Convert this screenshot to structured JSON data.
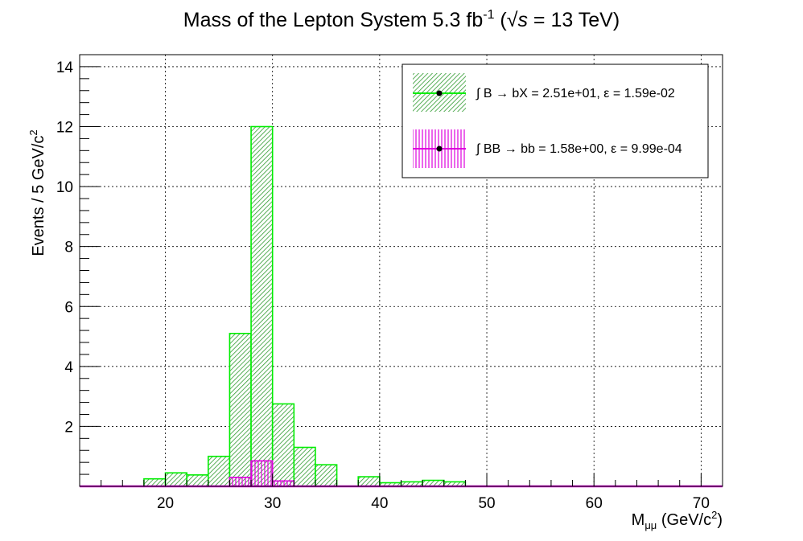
{
  "chart_data": {
    "type": "bar",
    "title_main": "Mass of the Lepton System 5.3 fb",
    "title_exp": "-1",
    "title_paren_open": " (",
    "title_sqrt": "√",
    "title_s": "s",
    "title_rest": " = 13 TeV)",
    "ylabel_main": "Events / 5 GeV/c",
    "ylabel_exp": "2",
    "xlabel_main": "M",
    "xlabel_sub": "μμ",
    "xlabel_mid": " (GeV/c",
    "xlabel_exp": "2",
    "xlabel_close": ")",
    "xlim": [
      12,
      72
    ],
    "ylim": [
      0,
      14.4
    ],
    "bin_width": 2,
    "x_ticks": [
      20,
      30,
      40,
      50,
      60,
      70
    ],
    "y_ticks": [
      2,
      4,
      6,
      8,
      10,
      12,
      14
    ],
    "grid": true,
    "legend_position": "top-right",
    "series": [
      {
        "name": "∫ B → bX = 2.51e+01, ε = 1.59e-02",
        "color": "#00ee00",
        "fill": "hatch-diagonal",
        "bin_low_edges": [
          18,
          20,
          22,
          24,
          26,
          28,
          30,
          32,
          34,
          36,
          38,
          40,
          42,
          44,
          46,
          48
        ],
        "values": [
          0.25,
          0.45,
          0.38,
          1.0,
          5.1,
          12.0,
          2.75,
          1.3,
          0.72,
          0.0,
          0.32,
          0.12,
          0.15,
          0.2,
          0.15,
          0.0
        ]
      },
      {
        "name": "∫ BB → bb = 1.58e+00, ε = 9.99e-04",
        "color": "#dd00dd",
        "fill": "hatch-vertical",
        "bin_low_edges": [
          26,
          28,
          30
        ],
        "values": [
          0.3,
          0.85,
          0.18
        ]
      }
    ]
  }
}
